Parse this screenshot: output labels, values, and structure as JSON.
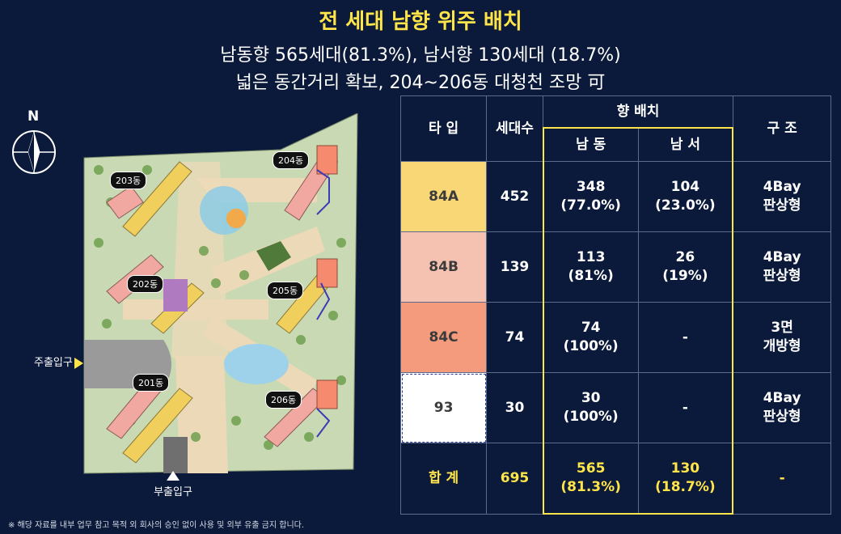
{
  "header": {
    "title": "전 세대 남향 위주 배치",
    "subtitle1": "남동향 565세대(81.3%), 남서향 130세대 (18.7%)",
    "subtitle2": "넓은 동간거리 확보, 204~206동 대청천 조망 可"
  },
  "compass": {
    "label": "N"
  },
  "plan": {
    "buildings": [
      "203동",
      "204동",
      "202동",
      "205동",
      "201동",
      "206동"
    ],
    "main_entrance": "주출입구",
    "sub_entrance": "부출입구"
  },
  "table": {
    "headers": {
      "type": "타 입",
      "count": "세대수",
      "orientation": "향 배치",
      "southeast": "남 동",
      "southwest": "남 서",
      "structure": "구 조"
    },
    "rows": [
      {
        "type": "84A",
        "count": "452",
        "se1": "348",
        "se2": "(77.0%)",
        "sw1": "104",
        "sw2": "(23.0%)",
        "st1": "4Bay",
        "st2": "판상형"
      },
      {
        "type": "84B",
        "count": "139",
        "se1": "113",
        "se2": "(81%)",
        "sw1": "26",
        "sw2": "(19%)",
        "st1": "4Bay",
        "st2": "판상형"
      },
      {
        "type": "84C",
        "count": "74",
        "se1": "74",
        "se2": "(100%)",
        "sw1": "-",
        "sw2": "",
        "st1": "3면",
        "st2": "개방형"
      },
      {
        "type": "93",
        "count": "30",
        "se1": "30",
        "se2": "(100%)",
        "sw1": "-",
        "sw2": "",
        "st1": "4Bay",
        "st2": "판상형"
      }
    ],
    "total": {
      "label": "합 계",
      "count": "695",
      "se1": "565",
      "se2": "(81.3%)",
      "sw1": "130",
      "sw2": "(18.7%)",
      "st": "-"
    }
  },
  "colors": {
    "background": "#0b1a3a",
    "accent": "#ffe54a",
    "type84A": "#f9d676",
    "type84B": "#f5c1b1",
    "type84C": "#f49a7d",
    "type93": "#ffffff"
  },
  "footnote": "※ 해당 자료를 내부 업무 참고 목적 외 회사의 승인 없이 사용 및 외부 유출 금지 합니다."
}
